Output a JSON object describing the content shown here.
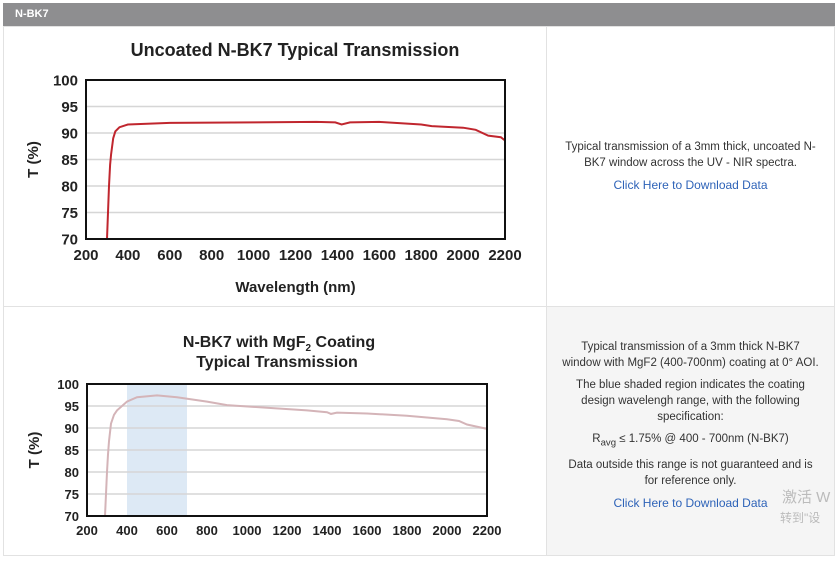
{
  "header": {
    "title": "N-BK7"
  },
  "rows": [
    {
      "description": [
        "Typical transmission of a 3mm thick, uncoated N-BK7 window across the UV - NIR spectra."
      ],
      "download_link": "Click Here to Download Data"
    },
    {
      "description": [
        "Typical transmission of a 3mm thick N-BK7 window with MgF2 (400-700nm) coating at 0° AOI.",
        "The blue shaded region indicates the coating design wavelengh range, with the following specification:"
      ],
      "spec": {
        "symbol": "R",
        "sub": "avg",
        "text": " ≤ 1.75% @ 400 - 700nm (N-BK7)"
      },
      "note": "Data outside this range is not guaranteed and is for reference only.",
      "download_link": "Click Here to Download Data"
    }
  ],
  "watermark": {
    "line1": "激活 W",
    "line2": "转到\"设"
  },
  "chart_data": [
    {
      "type": "line",
      "title": "Uncoated N-BK7 Typical Transmission",
      "xlabel": "Wavelength (nm)",
      "ylabel": "T (%)",
      "xlim": [
        200,
        2200
      ],
      "ylim": [
        70,
        100
      ],
      "xticks": [
        200,
        400,
        600,
        800,
        1000,
        1200,
        1400,
        1600,
        1800,
        2000,
        2200
      ],
      "yticks": [
        70,
        75,
        80,
        85,
        90,
        95,
        100
      ],
      "grid": true,
      "color": "#c0262e",
      "x": [
        300,
        305,
        310,
        315,
        320,
        330,
        340,
        360,
        400,
        600,
        1000,
        1300,
        1390,
        1420,
        1460,
        1600,
        1800,
        1850,
        2000,
        2060,
        2120,
        2180,
        2200
      ],
      "y": [
        70,
        75,
        80,
        84,
        86,
        89,
        90.3,
        91.1,
        91.6,
        91.9,
        92,
        92.1,
        92,
        91.6,
        92,
        92.1,
        91.6,
        91.3,
        91,
        90.6,
        89.5,
        89.2,
        88.6
      ]
    },
    {
      "type": "line",
      "title": "N-BK7 with MgF2 Coating",
      "title_parts": [
        "N-BK7 with MgF",
        "2",
        " Coating"
      ],
      "title_line2": "Typical Transmission",
      "xlabel": "",
      "ylabel": "T (%)",
      "xlim": [
        200,
        2200
      ],
      "ylim": [
        70,
        100
      ],
      "xticks": [
        200,
        400,
        600,
        800,
        1000,
        1200,
        1400,
        1600,
        1800,
        2000,
        2200
      ],
      "yticks": [
        70,
        75,
        80,
        85,
        90,
        95,
        100
      ],
      "grid": true,
      "color": "#d4b4b8",
      "shade": [
        400,
        700
      ],
      "shade_color": "#dde9f5",
      "x": [
        290,
        295,
        300,
        305,
        310,
        320,
        335,
        350,
        400,
        450,
        550,
        650,
        800,
        900,
        1100,
        1300,
        1400,
        1420,
        1450,
        1600,
        1800,
        2000,
        2060,
        2100,
        2200
      ],
      "y": [
        70,
        75,
        80,
        84,
        87,
        91,
        93,
        94,
        96,
        97,
        97.4,
        97,
        96,
        95.2,
        94.6,
        94,
        93.6,
        93.2,
        93.5,
        93.3,
        92.8,
        92,
        91.6,
        90.8,
        89.8
      ]
    }
  ]
}
